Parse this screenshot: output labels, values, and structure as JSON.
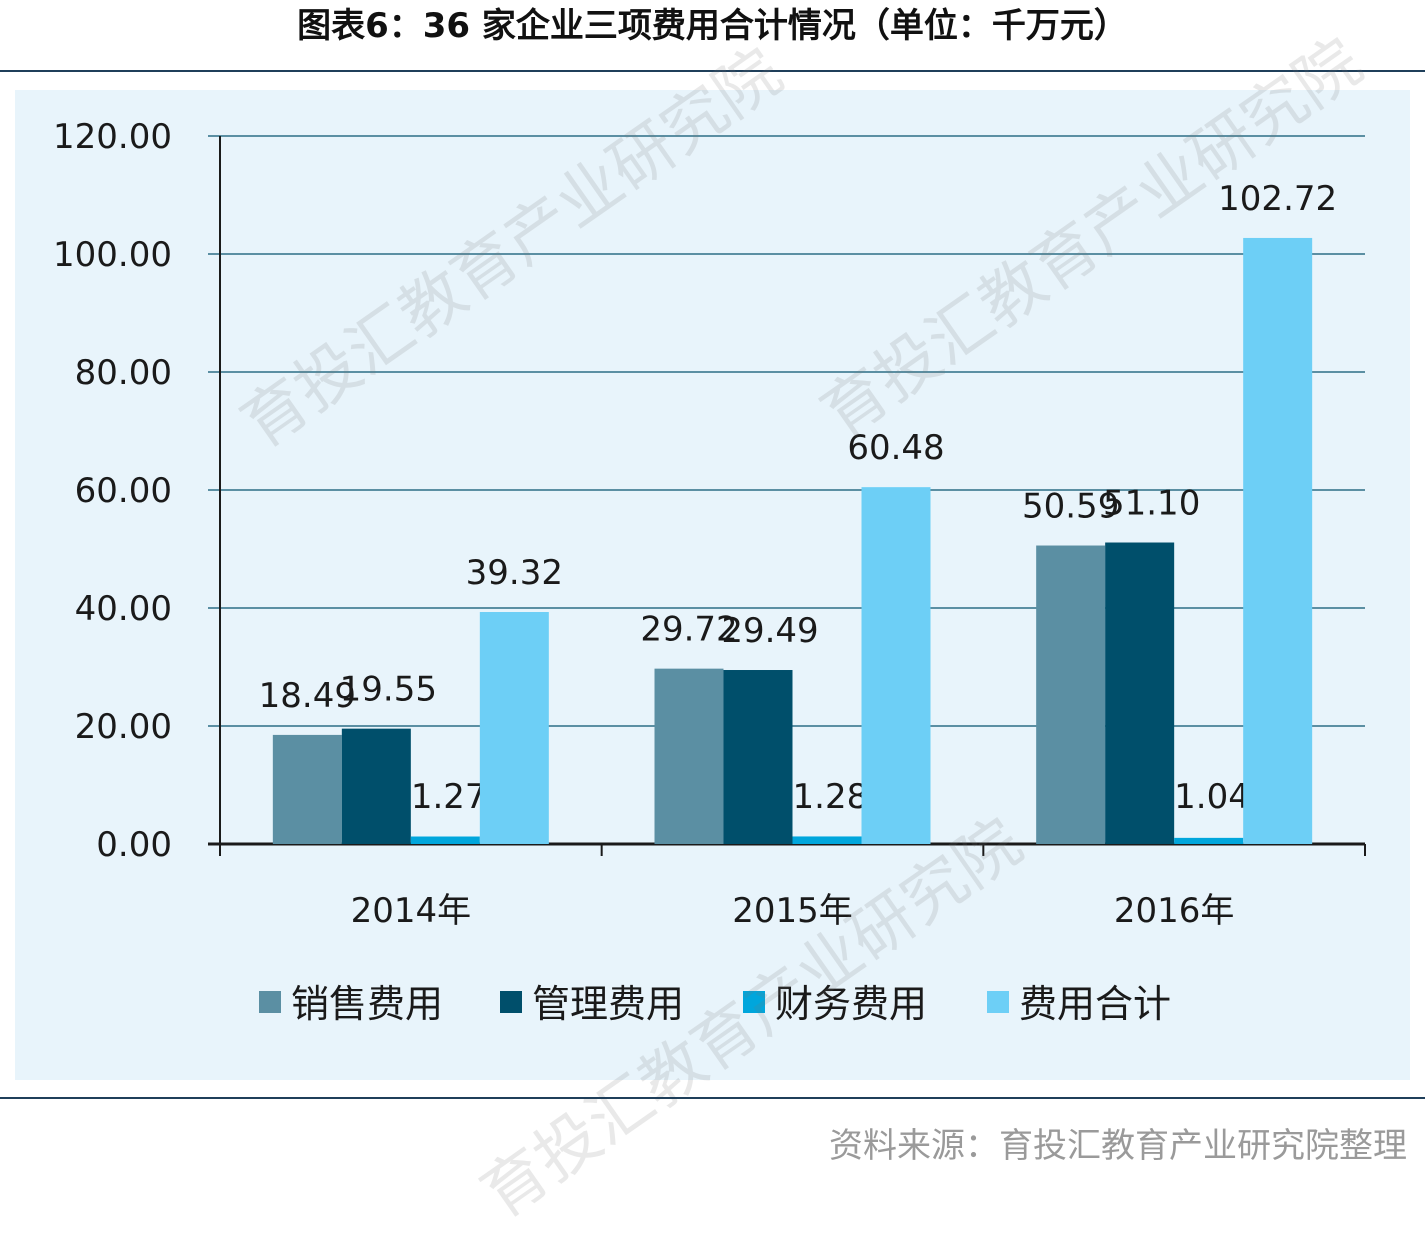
{
  "title": "图表6：36 家企业三项费用合计情况（单位：千万元）",
  "source": "资料来源：育投汇教育产业研究院整理",
  "watermark": "育投汇教育产业研究院",
  "chart_data": {
    "type": "bar",
    "categories": [
      "2014年",
      "2015年",
      "2016年"
    ],
    "series": [
      {
        "name": "销售费用",
        "values": [
          18.49,
          29.72,
          50.59
        ],
        "color": "#5b8fa3"
      },
      {
        "name": "管理费用",
        "values": [
          19.55,
          29.49,
          51.1
        ],
        "color": "#004f6b"
      },
      {
        "name": "财务费用",
        "values": [
          1.27,
          1.28,
          1.04
        ],
        "color": "#00a6dc"
      },
      {
        "name": "费用合计",
        "values": [
          39.32,
          60.48,
          102.72
        ],
        "color": "#6dcff6"
      }
    ],
    "ylim": [
      0,
      120
    ],
    "yticks": [
      "0.00",
      "20.00",
      "40.00",
      "60.00",
      "80.00",
      "100.00",
      "120.00"
    ],
    "data_labels": [
      [
        "18.49",
        "29.72",
        "50.59"
      ],
      [
        "19.55",
        "29.49",
        "51.10"
      ],
      [
        "1.27",
        "1.28",
        "1.04"
      ],
      [
        "39.32",
        "60.48",
        "102.72"
      ]
    ],
    "grid": true,
    "legend_position": "bottom",
    "gridline_color": "#5b8fa3",
    "axis_color": "#1a1a1a"
  }
}
